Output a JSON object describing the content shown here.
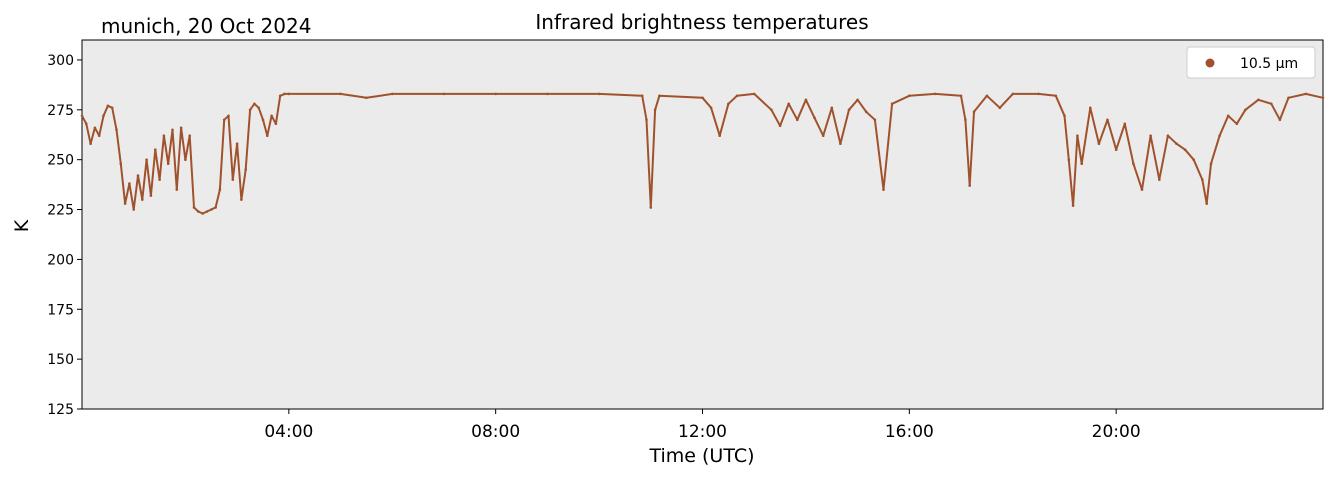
{
  "chart_data": {
    "type": "scatter",
    "title": "Infrared brightness temperatures",
    "location_date": "munich, 20 Oct 2024",
    "xlabel": "Time (UTC)",
    "ylabel": "K",
    "xlim": [
      "00:00",
      "24:00"
    ],
    "ylim": [
      125,
      310
    ],
    "yticks": [
      125,
      150,
      175,
      200,
      225,
      250,
      275,
      300
    ],
    "xticks": [
      "04:00",
      "08:00",
      "12:00",
      "16:00",
      "20:00"
    ],
    "legend_position": "top-right",
    "background_color": "#ebebeb",
    "series": [
      {
        "name": "10.5 µm",
        "color": "#a0522d",
        "points": [
          [
            "00:00",
            272
          ],
          [
            "00:05",
            268
          ],
          [
            "00:10",
            258
          ],
          [
            "00:15",
            266
          ],
          [
            "00:20",
            262
          ],
          [
            "00:25",
            272
          ],
          [
            "00:30",
            277
          ],
          [
            "00:35",
            276
          ],
          [
            "00:40",
            265
          ],
          [
            "00:45",
            248
          ],
          [
            "00:50",
            228
          ],
          [
            "00:55",
            238
          ],
          [
            "01:00",
            225
          ],
          [
            "01:05",
            242
          ],
          [
            "01:10",
            230
          ],
          [
            "01:15",
            250
          ],
          [
            "01:20",
            232
          ],
          [
            "01:25",
            255
          ],
          [
            "01:30",
            240
          ],
          [
            "01:35",
            262
          ],
          [
            "01:40",
            248
          ],
          [
            "01:45",
            265
          ],
          [
            "01:50",
            235
          ],
          [
            "01:55",
            266
          ],
          [
            "02:00",
            250
          ],
          [
            "02:05",
            262
          ],
          [
            "02:10",
            226
          ],
          [
            "02:15",
            224
          ],
          [
            "02:20",
            223
          ],
          [
            "02:25",
            224
          ],
          [
            "02:30",
            225
          ],
          [
            "02:35",
            226
          ],
          [
            "02:40",
            235
          ],
          [
            "02:45",
            270
          ],
          [
            "02:50",
            272
          ],
          [
            "02:55",
            240
          ],
          [
            "03:00",
            258
          ],
          [
            "03:05",
            230
          ],
          [
            "03:10",
            245
          ],
          [
            "03:15",
            275
          ],
          [
            "03:20",
            278
          ],
          [
            "03:25",
            276
          ],
          [
            "03:30",
            270
          ],
          [
            "03:35",
            262
          ],
          [
            "03:40",
            272
          ],
          [
            "03:45",
            268
          ],
          [
            "03:50",
            282
          ],
          [
            "03:55",
            283
          ],
          [
            "04:00",
            283
          ],
          [
            "05:00",
            283
          ],
          [
            "05:30",
            281
          ],
          [
            "06:00",
            283
          ],
          [
            "07:00",
            283
          ],
          [
            "08:00",
            283
          ],
          [
            "09:00",
            283
          ],
          [
            "10:00",
            283
          ],
          [
            "10:50",
            282
          ],
          [
            "10:55",
            270
          ],
          [
            "11:00",
            226
          ],
          [
            "11:05",
            275
          ],
          [
            "11:10",
            282
          ],
          [
            "12:00",
            281
          ],
          [
            "12:10",
            276
          ],
          [
            "12:20",
            262
          ],
          [
            "12:30",
            278
          ],
          [
            "12:40",
            282
          ],
          [
            "13:00",
            283
          ],
          [
            "13:20",
            275
          ],
          [
            "13:30",
            267
          ],
          [
            "13:40",
            278
          ],
          [
            "13:50",
            270
          ],
          [
            "14:00",
            280
          ],
          [
            "14:10",
            271
          ],
          [
            "14:20",
            262
          ],
          [
            "14:30",
            276
          ],
          [
            "14:40",
            258
          ],
          [
            "14:50",
            275
          ],
          [
            "15:00",
            280
          ],
          [
            "15:10",
            274
          ],
          [
            "15:20",
            270
          ],
          [
            "15:30",
            235
          ],
          [
            "15:40",
            278
          ],
          [
            "16:00",
            282
          ],
          [
            "16:30",
            283
          ],
          [
            "17:00",
            282
          ],
          [
            "17:05",
            270
          ],
          [
            "17:10",
            237
          ],
          [
            "17:15",
            274
          ],
          [
            "17:30",
            282
          ],
          [
            "17:45",
            276
          ],
          [
            "18:00",
            283
          ],
          [
            "18:30",
            283
          ],
          [
            "18:50",
            282
          ],
          [
            "19:00",
            272
          ],
          [
            "19:05",
            250
          ],
          [
            "19:10",
            227
          ],
          [
            "19:15",
            262
          ],
          [
            "19:20",
            248
          ],
          [
            "19:30",
            276
          ],
          [
            "19:40",
            258
          ],
          [
            "19:50",
            270
          ],
          [
            "20:00",
            255
          ],
          [
            "20:10",
            268
          ],
          [
            "20:20",
            248
          ],
          [
            "20:30",
            235
          ],
          [
            "20:40",
            262
          ],
          [
            "20:50",
            240
          ],
          [
            "21:00",
            262
          ],
          [
            "21:10",
            258
          ],
          [
            "21:20",
            255
          ],
          [
            "21:30",
            250
          ],
          [
            "21:40",
            240
          ],
          [
            "21:45",
            228
          ],
          [
            "21:50",
            248
          ],
          [
            "22:00",
            262
          ],
          [
            "22:10",
            272
          ],
          [
            "22:20",
            268
          ],
          [
            "22:30",
            275
          ],
          [
            "22:45",
            280
          ],
          [
            "23:00",
            278
          ],
          [
            "23:10",
            270
          ],
          [
            "23:20",
            281
          ],
          [
            "23:40",
            283
          ],
          [
            "24:00",
            281
          ]
        ]
      }
    ]
  }
}
